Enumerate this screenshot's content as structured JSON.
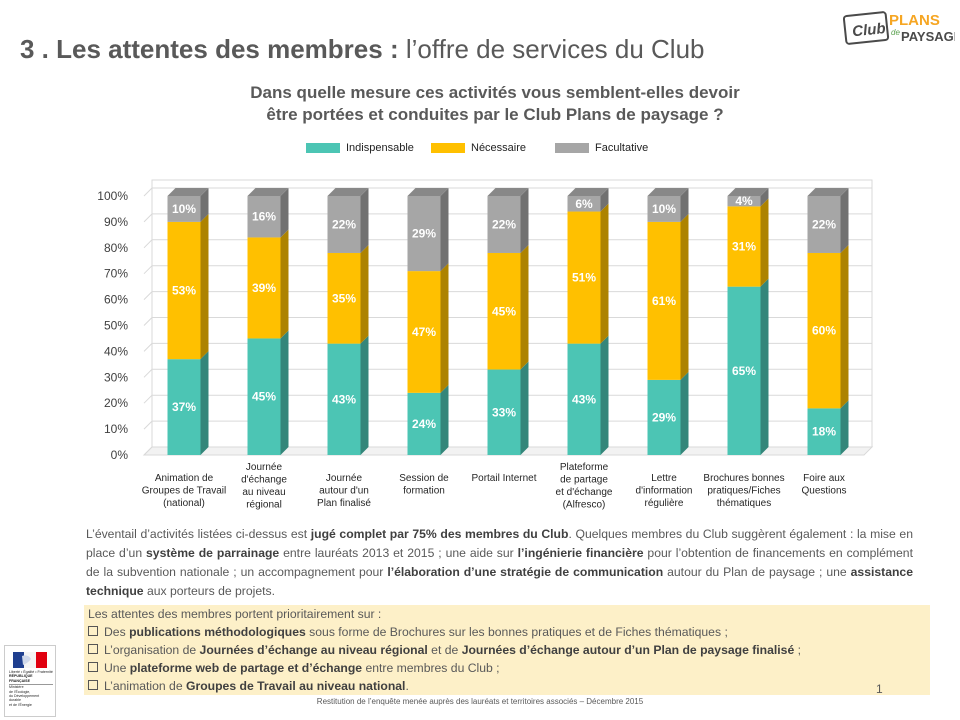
{
  "slide": {
    "title_bold": "3 . Les attentes des membres :",
    "title_rest": " l’offre de services du Club",
    "logo": {
      "club": "Club",
      "plans": "PLANS",
      "de": "de",
      "paysage": "PAYSAGE"
    }
  },
  "chart_data": {
    "type": "bar",
    "stacked": true,
    "percent": true,
    "title": "Dans quelle mesure ces activités vous semblent-elles devoir être portées et conduites par le Club Plans de paysage ?",
    "title_lines": [
      "Dans quelle mesure ces activités vous semblent-elles devoir",
      "être portées et conduites par le Club Plans de paysage ?"
    ],
    "legend_position": "top",
    "ylim": [
      0,
      100
    ],
    "yticks": [
      "0%",
      "10%",
      "20%",
      "30%",
      "40%",
      "50%",
      "60%",
      "70%",
      "80%",
      "90%",
      "100%"
    ],
    "grid": true,
    "categories": [
      [
        "Animation de",
        "Groupes de Travail",
        "(national)"
      ],
      [
        "Journée",
        "d'échange",
        "au niveau",
        "régional"
      ],
      [
        "Journée",
        "autour d'un",
        "Plan finalisé"
      ],
      [
        "Session de",
        "formation"
      ],
      [
        "Portail Internet"
      ],
      [
        "Plateforme",
        "de partage",
        "et d'échange",
        "(Alfresco)"
      ],
      [
        "Lettre",
        "d'information",
        "régulière"
      ],
      [
        "Brochures bonnes",
        "pratiques/Fiches",
        "thématiques"
      ],
      [
        "Foire aux",
        "Questions"
      ]
    ],
    "series": [
      {
        "name": "Indispensable",
        "color": "#4cc5b4",
        "values": [
          37,
          45,
          43,
          24,
          33,
          43,
          29,
          65,
          18
        ],
        "labels": [
          "37%",
          "45%",
          "43%",
          "24%",
          "33%",
          "43%",
          "29%",
          "65%",
          "18%"
        ]
      },
      {
        "name": "Nécessaire",
        "color": "#ffc000",
        "values": [
          53,
          39,
          35,
          47,
          45,
          51,
          61,
          31,
          60
        ],
        "labels": [
          "53%",
          "39%",
          "35%",
          "47%",
          "45%",
          "51%",
          "61%",
          "31%",
          "60%"
        ]
      },
      {
        "name": "Facultative",
        "color": "#a6a6a6",
        "values": [
          10,
          16,
          22,
          29,
          22,
          6,
          10,
          4,
          22
        ],
        "labels": [
          "10%",
          "16%",
          "22%",
          "29%",
          "22%",
          "6%",
          "10%",
          "4%",
          "22%"
        ]
      }
    ]
  },
  "paragraph": [
    {
      "t": "L’éventail d’activités listées ci-dessus est ",
      "b": false
    },
    {
      "t": "jugé complet par 75% des membres du Club",
      "b": true
    },
    {
      "t": ". Quelques membres du Club suggèrent également : la mise en place d’un ",
      "b": false
    },
    {
      "t": "système de parrainage",
      "b": true
    },
    {
      "t": " entre lauréats 2013 et 2015 ; une aide sur ",
      "b": false
    },
    {
      "t": "l’ingénierie financière",
      "b": true
    },
    {
      "t": " pour l’obtention de financements en complément de la subvention nationale ; un accompagnement pour ",
      "b": false
    },
    {
      "t": "l’élaboration d’une stratégie de communication",
      "b": true
    },
    {
      "t": " autour du Plan de paysage ; une ",
      "b": false
    },
    {
      "t": "assistance technique",
      "b": true
    },
    {
      "t": " aux porteurs de projets.",
      "b": false
    }
  ],
  "box": {
    "intro": "Les attentes des membres portent prioritairement sur :",
    "items": [
      [
        {
          "t": "Des ",
          "b": false
        },
        {
          "t": "publications méthodologiques",
          "b": true
        },
        {
          "t": " sous forme de Brochures sur les bonnes pratiques et de Fiches thématiques ;",
          "b": false
        }
      ],
      [
        {
          "t": "L’organisation de ",
          "b": false
        },
        {
          "t": "Journées d’échange au niveau régional",
          "b": true
        },
        {
          "t": " et de ",
          "b": false
        },
        {
          "t": "Journées d’échange autour d’un Plan de paysage finalisé",
          "b": true
        },
        {
          "t": " ;",
          "b": false
        }
      ],
      [
        {
          "t": "Une ",
          "b": false
        },
        {
          "t": "plateforme web de partage et d’échange",
          "b": true
        },
        {
          "t": " entre membres du Club ;",
          "b": false
        }
      ],
      [
        {
          "t": "L’animation de ",
          "b": false
        },
        {
          "t": "Groupes de Travail au niveau national",
          "b": true
        },
        {
          "t": ".",
          "b": false
        }
      ]
    ]
  },
  "page_number": "1",
  "footer": "Restitution de l’enquête menée auprès des lauréats et territoires associés – Décembre 2015",
  "rf_logo": {
    "motto": "Liberté • Égalité • Fraternité",
    "republic": "RÉPUBLIQUE FRANÇAISE",
    "ministry": [
      "Ministère",
      "de l'Écologie,",
      "du Développement",
      "durable",
      "et de l'Énergie"
    ]
  }
}
